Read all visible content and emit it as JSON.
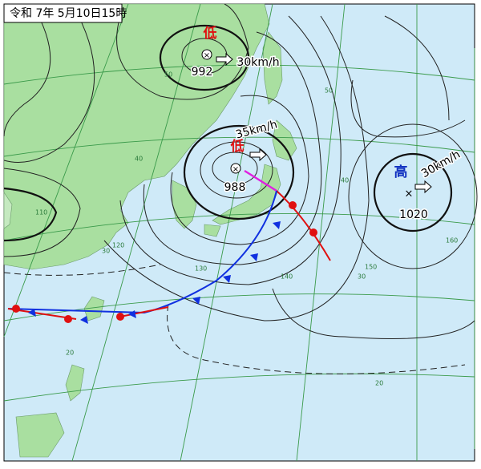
{
  "header": {
    "title": "令和 7年 5月10日15時"
  },
  "systems": [
    {
      "label": "低",
      "pressure": "992",
      "speed": "30km/h"
    },
    {
      "label": "低",
      "pressure": "988",
      "speed": "35km/h"
    },
    {
      "label": "高",
      "pressure": "1020",
      "speed": "30km/h"
    }
  ],
  "grid_labels": [
    "50",
    "50",
    "40",
    "40",
    "30",
    "30",
    "20",
    "20",
    "110",
    "120",
    "130",
    "140",
    "150",
    "160"
  ]
}
